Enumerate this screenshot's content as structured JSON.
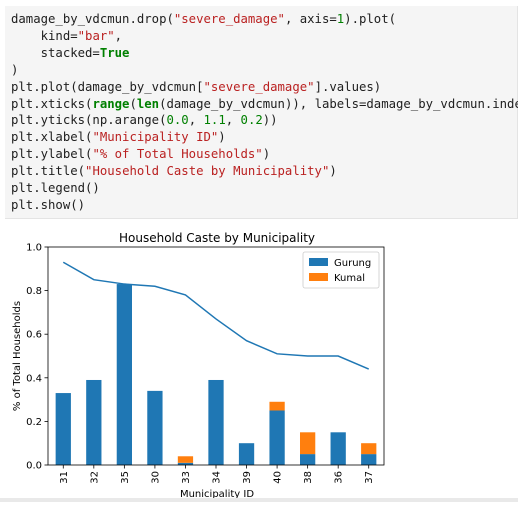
{
  "notebook": {
    "code_lines": [
      [
        {
          "t": "damage_by_vdcmun.drop(",
          "c": "tk-op"
        },
        {
          "t": "\"severe_damage\"",
          "c": "tk-str"
        },
        {
          "t": ", axis=",
          "c": "tk-op"
        },
        {
          "t": "1",
          "c": "tk-num"
        },
        {
          "t": ").plot(",
          "c": "tk-op"
        }
      ],
      [
        {
          "t": "    kind=",
          "c": "tk-op"
        },
        {
          "t": "\"bar\"",
          "c": "tk-str"
        },
        {
          "t": ",",
          "c": "tk-op"
        }
      ],
      [
        {
          "t": "    stacked=",
          "c": "tk-op"
        },
        {
          "t": "True",
          "c": "tk-kw"
        }
      ],
      [
        {
          "t": ")",
          "c": "tk-op"
        }
      ],
      [
        {
          "t": "plt.plot(damage_by_vdcmun[",
          "c": "tk-op"
        },
        {
          "t": "\"severe_damage\"",
          "c": "tk-str"
        },
        {
          "t": "].values)",
          "c": "tk-op"
        }
      ],
      [
        {
          "t": "plt.xticks(",
          "c": "tk-op"
        },
        {
          "t": "range",
          "c": "tk-kw"
        },
        {
          "t": "(",
          "c": "tk-op"
        },
        {
          "t": "len",
          "c": "tk-kw"
        },
        {
          "t": "(damage_by_vdcmun)), labels=damage_by_vdcmun.index)",
          "c": "tk-op"
        }
      ],
      [
        {
          "t": "plt.yticks(np.arange(",
          "c": "tk-op"
        },
        {
          "t": "0.0",
          "c": "tk-num"
        },
        {
          "t": ", ",
          "c": "tk-op"
        },
        {
          "t": "1.1",
          "c": "tk-num"
        },
        {
          "t": ", ",
          "c": "tk-op"
        },
        {
          "t": "0.2",
          "c": "tk-num"
        },
        {
          "t": "))",
          "c": "tk-op"
        }
      ],
      [
        {
          "t": "plt.xlabel(",
          "c": "tk-op"
        },
        {
          "t": "\"Municipality ID\"",
          "c": "tk-str"
        },
        {
          "t": ")",
          "c": "tk-op"
        }
      ],
      [
        {
          "t": "plt.ylabel(",
          "c": "tk-op"
        },
        {
          "t": "\"% of Total Households\"",
          "c": "tk-str"
        },
        {
          "t": ")",
          "c": "tk-op"
        }
      ],
      [
        {
          "t": "plt.title(",
          "c": "tk-op"
        },
        {
          "t": "\"Household Caste by Municipality\"",
          "c": "tk-str"
        },
        {
          "t": ")",
          "c": "tk-op"
        }
      ],
      [
        {
          "t": "plt.legend()",
          "c": "tk-op"
        }
      ],
      [
        {
          "t": "plt.show()",
          "c": "tk-op"
        }
      ]
    ]
  },
  "chart_data": {
    "type": "bar",
    "stacked": true,
    "title": "Household Caste by Municipality",
    "xlabel": "Municipality ID",
    "ylabel": "% of Total Households",
    "ylim": [
      0.0,
      1.0
    ],
    "yticks": [
      "0.0",
      "0.2",
      "0.4",
      "0.6",
      "0.8",
      "1.0"
    ],
    "categories": [
      "31",
      "32",
      "35",
      "30",
      "33",
      "34",
      "39",
      "40",
      "38",
      "36",
      "37"
    ],
    "series": [
      {
        "name": "Gurung",
        "color": "#1f77b4",
        "values": [
          0.33,
          0.39,
          0.83,
          0.34,
          0.01,
          0.39,
          0.1,
          0.25,
          0.05,
          0.15,
          0.05
        ]
      },
      {
        "name": "Kumal",
        "color": "#ff7f0e",
        "values": [
          0.0,
          0.0,
          0.0,
          0.0,
          0.03,
          0.0,
          0.0,
          0.04,
          0.1,
          0.0,
          0.05
        ]
      }
    ],
    "line": {
      "color": "#1f77b4",
      "values": [
        0.93,
        0.85,
        0.83,
        0.82,
        0.78,
        0.67,
        0.57,
        0.51,
        0.5,
        0.5,
        0.44
      ]
    },
    "legend_position": "top-right",
    "grid": false
  }
}
